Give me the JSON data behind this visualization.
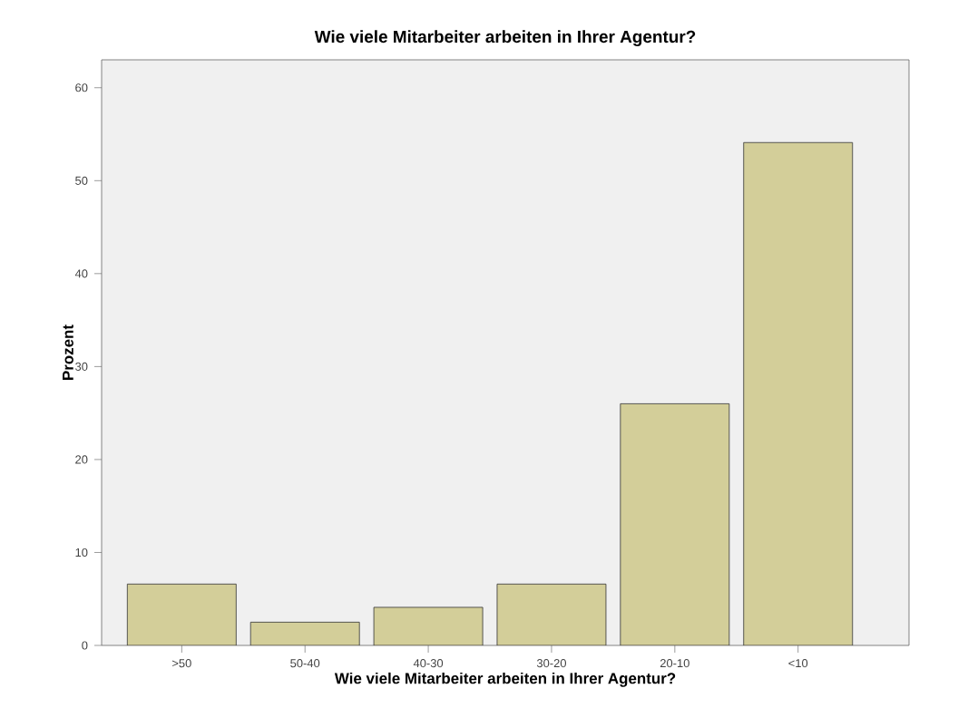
{
  "chart_data": {
    "type": "bar",
    "title": "Wie viele Mitarbeiter arbeiten in Ihrer Agentur?",
    "xlabel": "Wie viele Mitarbeiter arbeiten in Ihrer Agentur?",
    "ylabel": "Prozent",
    "categories": [
      ">50",
      "50-40",
      "40-30",
      "30-20",
      "20-10",
      "<10"
    ],
    "values": [
      6.6,
      2.5,
      4.1,
      6.6,
      26.0,
      54.1
    ],
    "color": "#d3ce99",
    "ylim": [
      0,
      63
    ],
    "yticks": [
      0,
      10,
      20,
      30,
      40,
      50,
      60
    ],
    "grid": false
  }
}
